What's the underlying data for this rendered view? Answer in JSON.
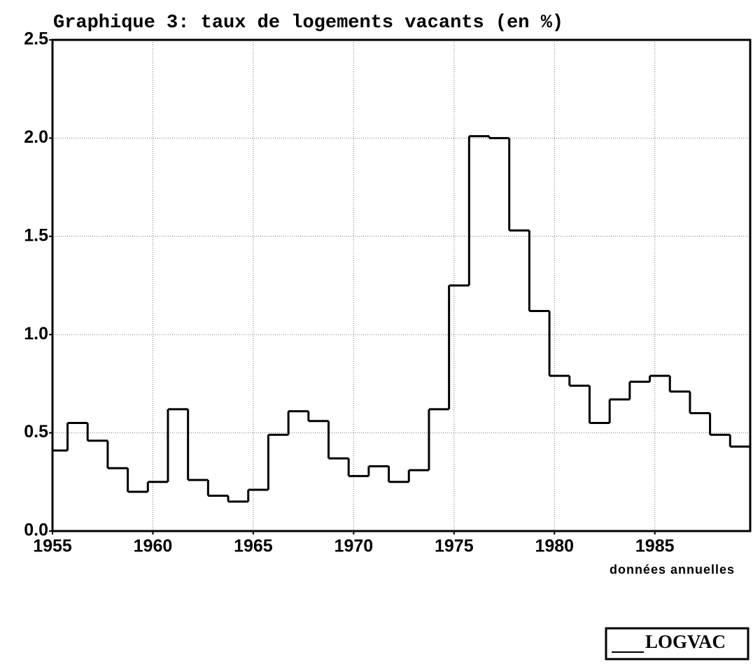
{
  "chart_data": {
    "type": "step",
    "title": "Graphique 3: taux de logements vacants (en %)",
    "x_label": "données annuelles",
    "x": [
      1955,
      1956,
      1957,
      1958,
      1959,
      1960,
      1961,
      1962,
      1963,
      1964,
      1965,
      1966,
      1967,
      1968,
      1969,
      1970,
      1971,
      1972,
      1973,
      1974,
      1975,
      1976,
      1977,
      1978,
      1979,
      1980,
      1981,
      1982,
      1983,
      1984,
      1985,
      1986,
      1987,
      1988,
      1989
    ],
    "series": [
      {
        "name": "LOGVAC",
        "color": "#000000",
        "values": [
          0.41,
          0.55,
          0.46,
          0.32,
          0.2,
          0.25,
          0.62,
          0.26,
          0.18,
          0.15,
          0.21,
          0.49,
          0.61,
          0.56,
          0.37,
          0.28,
          0.33,
          0.25,
          0.31,
          0.62,
          1.25,
          2.01,
          2.0,
          1.53,
          1.12,
          0.79,
          0.74,
          0.55,
          0.67,
          0.76,
          0.79,
          0.71,
          0.6,
          0.49,
          0.43
        ]
      }
    ],
    "xlim": [
      1955,
      1989.75
    ],
    "xticks": [
      1955,
      1960,
      1965,
      1970,
      1975,
      1980,
      1985
    ],
    "ylim": [
      0,
      2.5
    ],
    "yticks": [
      {
        "value": 0,
        "label": "0.0"
      },
      0.5,
      {
        "value": 1,
        "label": "1.0"
      },
      1.5,
      {
        "value": 2,
        "label": "2.0"
      },
      2.5
    ],
    "grid": true,
    "legend": "bottom-right"
  }
}
